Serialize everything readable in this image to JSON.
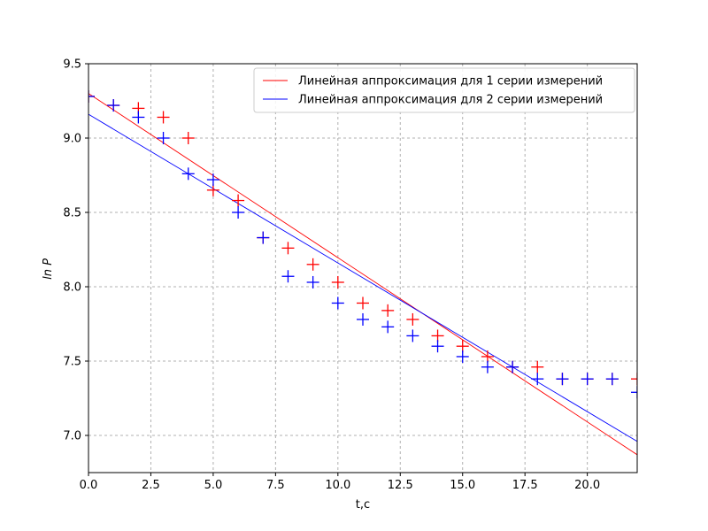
{
  "chart_data": {
    "type": "scatter",
    "title": "",
    "xlabel": "t,c",
    "ylabel": "ln P",
    "xlim": [
      0,
      22
    ],
    "ylim": [
      6.75,
      9.5
    ],
    "xticks": [
      "0.0",
      "2.5",
      "5.0",
      "7.5",
      "10.0",
      "12.5",
      "15.0",
      "17.5",
      "20.0"
    ],
    "yticks": [
      "7.0",
      "7.5",
      "8.0",
      "8.5",
      "9.0",
      "9.5"
    ],
    "grid": true,
    "legend_position": "top-right",
    "series": [
      {
        "color": "#ff0000",
        "marker": "+",
        "x": [
          0,
          1,
          2,
          3,
          4,
          5,
          6,
          7,
          8,
          9,
          10,
          11,
          12,
          13,
          14,
          15,
          16,
          17,
          18,
          19,
          20,
          21,
          22
        ],
        "y": [
          9.28,
          9.22,
          9.2,
          9.14,
          9.0,
          8.65,
          8.58,
          8.33,
          8.26,
          8.15,
          8.03,
          7.89,
          7.84,
          7.78,
          7.67,
          7.6,
          7.53,
          7.46,
          7.46,
          7.38,
          7.38,
          7.38,
          7.38
        ]
      },
      {
        "color": "#0000ff",
        "marker": "+",
        "x": [
          0,
          1,
          2,
          3,
          4,
          5,
          6,
          7,
          8,
          9,
          10,
          11,
          12,
          13,
          14,
          15,
          16,
          17,
          18,
          19,
          20,
          21,
          22
        ],
        "y": [
          9.28,
          9.22,
          9.14,
          9.0,
          8.76,
          8.72,
          8.5,
          8.33,
          8.07,
          8.03,
          7.89,
          7.78,
          7.73,
          7.67,
          7.6,
          7.53,
          7.46,
          7.46,
          7.38,
          7.38,
          7.38,
          7.38,
          7.29
        ]
      }
    ],
    "fit_lines": [
      {
        "name": "Линейная аппроксимация для 1 серии измерений",
        "color": "#ff0000",
        "x": [
          0,
          22
        ],
        "y": [
          9.3,
          6.87
        ]
      },
      {
        "name": "Линейная аппроксимация для 2 серии измерений",
        "color": "#0000ff",
        "x": [
          0,
          22
        ],
        "y": [
          9.16,
          6.96
        ]
      }
    ]
  }
}
